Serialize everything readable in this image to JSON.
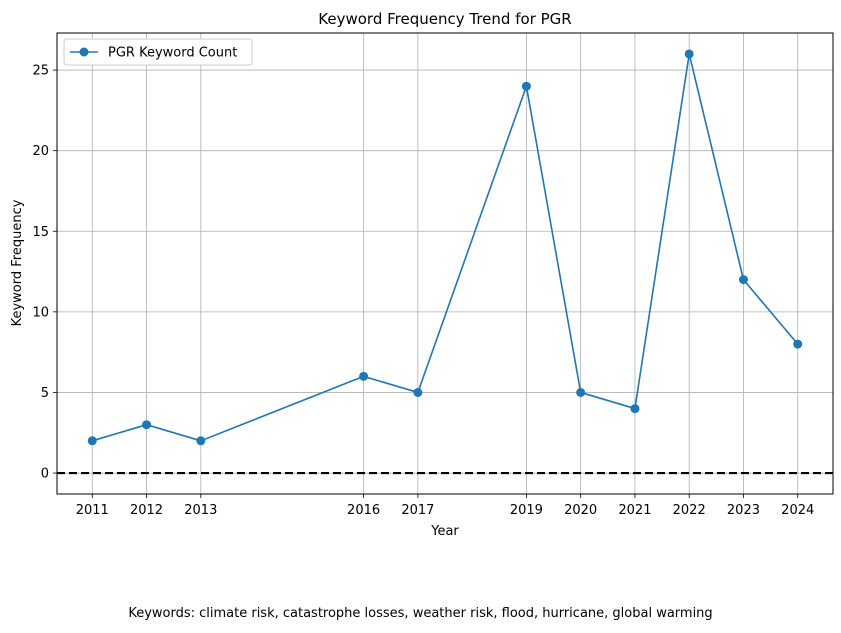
{
  "chart_data": {
    "type": "line",
    "title": "Keyword Frequency Trend for PGR",
    "xlabel": "Year",
    "ylabel": "Keyword Frequency",
    "x": [
      2011,
      2012,
      2013,
      2016,
      2017,
      2019,
      2020,
      2021,
      2022,
      2023,
      2024
    ],
    "series": [
      {
        "name": "PGR Keyword Count",
        "values": [
          2,
          3,
          2,
          6,
          5,
          24,
          5,
          4,
          26,
          12,
          8
        ],
        "color": "#1f77b4"
      }
    ],
    "xlim": [
      2010.35,
      2024.65
    ],
    "ylim": [
      -1.3,
      27.3
    ],
    "yticks": [
      0,
      5,
      10,
      15,
      20,
      25
    ],
    "grid": true,
    "legend": "top-left",
    "reference_line": {
      "y": 0,
      "style": "dashed",
      "color": "#000000"
    }
  },
  "footnote": "Keywords: climate risk, catastrophe losses, weather risk, flood, hurricane, global warming"
}
